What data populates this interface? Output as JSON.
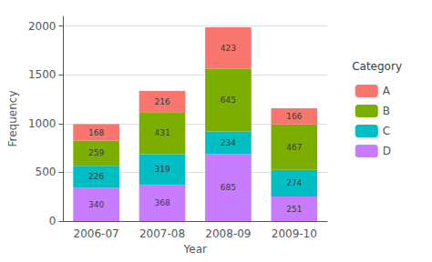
{
  "chart_data": {
    "type": "bar",
    "stacked": true,
    "categories": [
      "2006-07",
      "2007-08",
      "2008-09",
      "2009-10"
    ],
    "series": [
      {
        "name": "D",
        "color": "#C77CFF",
        "values": [
          340,
          368,
          685,
          251
        ]
      },
      {
        "name": "C",
        "color": "#00BFC4",
        "values": [
          226,
          319,
          234,
          274
        ]
      },
      {
        "name": "B",
        "color": "#7CAE00",
        "values": [
          259,
          431,
          645,
          467
        ]
      },
      {
        "name": "A",
        "color": "#F8766D",
        "values": [
          168,
          216,
          423,
          166
        ]
      }
    ],
    "xlabel": "Year",
    "ylabel": "Frequency",
    "legend_title": "Category",
    "ylim": [
      0,
      2100
    ],
    "yticks": [
      0,
      500,
      1000,
      1500,
      2000
    ],
    "grid": true,
    "legend": "right",
    "data_labels": true
  }
}
